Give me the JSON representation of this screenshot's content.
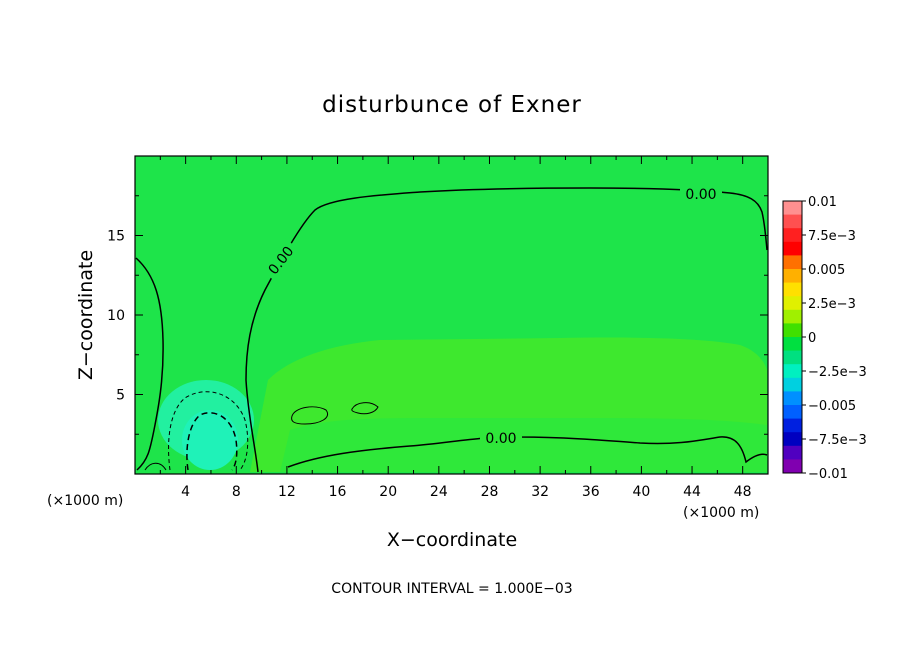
{
  "chart_data": {
    "type": "heatmap",
    "title": "disturbunce of Exner",
    "xlabel": "X−coordinate",
    "ylabel": "Z−coordinate",
    "x_unit_label": "(×1000 m)",
    "z_unit_label": "(×1000 m)",
    "xlim": [
      0,
      50
    ],
    "ylim": [
      0,
      20
    ],
    "x_ticks": [
      4,
      8,
      12,
      16,
      20,
      24,
      28,
      32,
      36,
      40,
      44,
      48
    ],
    "y_ticks": [
      5,
      10,
      15
    ],
    "contour_interval_text": "CONTOUR INTERVAL = 1.000E−03",
    "contour_labels": [
      "0.00",
      "0.00",
      "0.00"
    ],
    "colorbar": {
      "labels": [
        "0.01",
        "7.5e−3",
        "0.005",
        "2.5e−3",
        "0",
        "−2.5e−3",
        "−0.005",
        "−7.5e−3",
        "−0.01"
      ],
      "colors": [
        "#ff9090",
        "#ff5050",
        "#ff2020",
        "#ff0000",
        "#ff7000",
        "#ffb000",
        "#ffe000",
        "#e0f000",
        "#a0f000",
        "#40e000",
        "#00e040",
        "#00e080",
        "#00f0c0",
        "#00d0e0",
        "#0090ff",
        "#0060ff",
        "#0020e0",
        "#0000c0",
        "#5000c0",
        "#8000b0"
      ]
    },
    "fill_colors": {
      "background": "#1ee44a",
      "positive_band": "#3ee82e",
      "near_surface": "#2fe83a",
      "negative_anomaly": "#22f0a0",
      "negative_core": "#1ff2b8"
    }
  }
}
